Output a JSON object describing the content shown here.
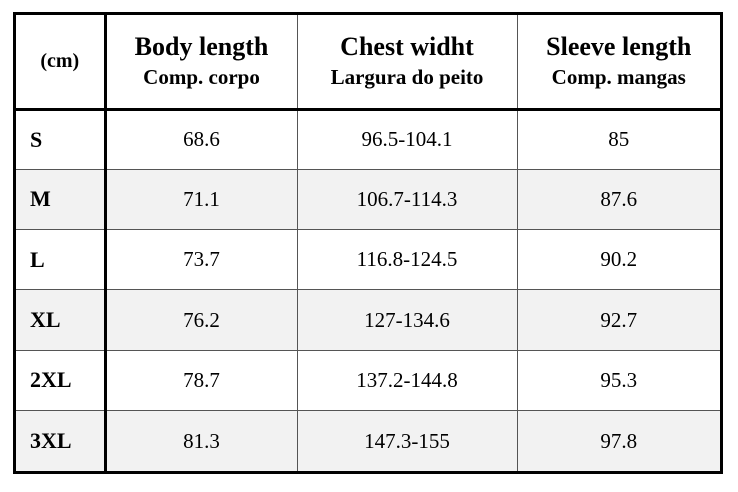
{
  "table": {
    "corner_label": "(cm)",
    "columns": [
      {
        "label_en": "Body length",
        "label_pt": "Comp. corpo"
      },
      {
        "label_en": "Chest widht",
        "label_pt": "Largura do peito"
      },
      {
        "label_en": "Sleeve length",
        "label_pt": "Comp. mangas"
      }
    ],
    "rows": [
      {
        "size": "S",
        "values": [
          "68.6",
          "96.5-104.1",
          "85"
        ]
      },
      {
        "size": "M",
        "values": [
          "71.1",
          "106.7-114.3",
          "87.6"
        ]
      },
      {
        "size": "L",
        "values": [
          "73.7",
          "116.8-124.5",
          "90.2"
        ]
      },
      {
        "size": "XL",
        "values": [
          "76.2",
          "127-134.6",
          "92.7"
        ]
      },
      {
        "size": "2XL",
        "values": [
          "78.7",
          "137.2-144.8",
          "95.3"
        ]
      },
      {
        "size": "3XL",
        "values": [
          "81.3",
          "147.3-155",
          "97.8"
        ]
      }
    ]
  }
}
